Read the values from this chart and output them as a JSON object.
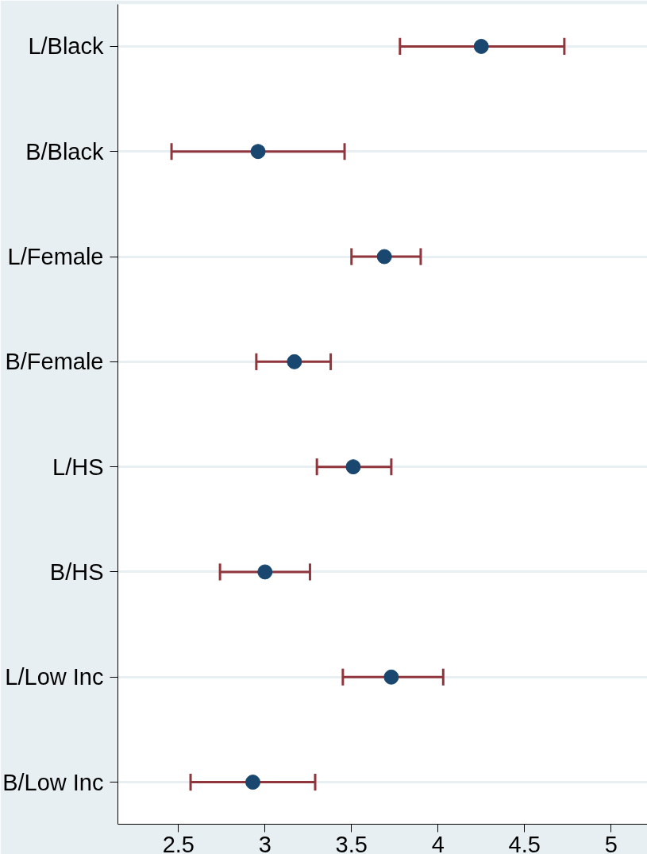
{
  "chart_data": {
    "type": "scatter",
    "orientation": "horizontal",
    "categories": [
      "L/Black",
      "B/Black",
      "L/Female",
      "B/Female",
      "L/HS",
      "B/HS",
      "L/Low Inc",
      "B/Low Inc"
    ],
    "values": [
      4.25,
      2.96,
      3.69,
      3.17,
      3.51,
      3.0,
      3.73,
      2.93
    ],
    "errors": [
      [
        3.78,
        4.73
      ],
      [
        2.46,
        3.46
      ],
      [
        3.5,
        3.9
      ],
      [
        2.95,
        3.38
      ],
      [
        3.3,
        3.73
      ],
      [
        2.74,
        3.26
      ],
      [
        3.45,
        4.03
      ],
      [
        2.57,
        3.29
      ]
    ],
    "color": "#1a476f",
    "marker": "circle",
    "xlim": [
      2.15,
      5.21
    ],
    "xticks": [
      2.5,
      3,
      3.5,
      4,
      4.5,
      5
    ],
    "grid": "y"
  }
}
